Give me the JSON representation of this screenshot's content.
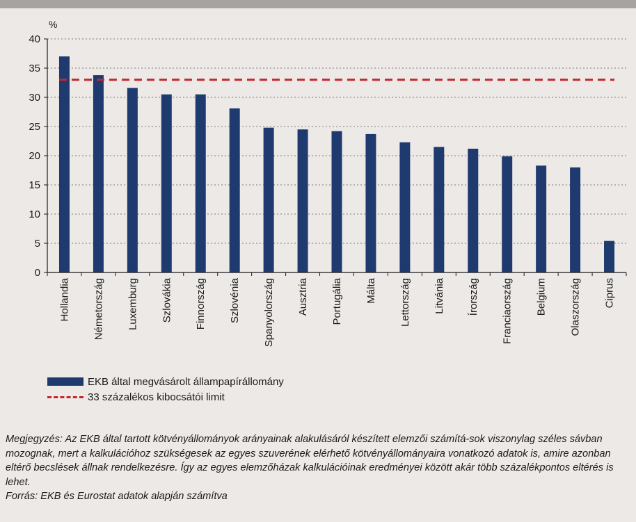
{
  "chart_data": {
    "type": "bar",
    "ylabel": "%",
    "ylim": [
      0,
      40
    ],
    "yticks": [
      0,
      5,
      10,
      15,
      20,
      25,
      30,
      35,
      40
    ],
    "grid": true,
    "categories": [
      "Hollandia",
      "Németország",
      "Luxemburg",
      "Szlovákia",
      "Finnország",
      "Szlovénia",
      "Spanyolország",
      "Ausztria",
      "Portugália",
      "Málta",
      "Lettország",
      "Litvánia",
      "Írország",
      "Franciaország",
      "Belgium",
      "Olaszország",
      "Ciprus"
    ],
    "series": [
      {
        "name": "EKB által megvásárolt állampapírállomány",
        "values": [
          37.0,
          33.8,
          31.6,
          30.5,
          30.5,
          28.1,
          24.8,
          24.5,
          24.2,
          23.7,
          22.3,
          21.5,
          21.2,
          19.9,
          18.3,
          18.0,
          5.4
        ],
        "color": "#1f3a6e"
      }
    ],
    "reference_line": {
      "name": "33 százalékos kibocsátói limit",
      "value": 33,
      "color": "#c1272d",
      "style": "dashed"
    },
    "legend_position": "bottom-left"
  },
  "legend": {
    "bar_label": "EKB által megvásárolt állampapírállomány",
    "line_label": "33 százalékos kibocsátói limit"
  },
  "notes": {
    "note": "Megjegyzés: Az EKB által tartott kötvényállományok arányainak alakulásáról készített elemzői számítá-sok viszonylag széles sávban mozognak, mert a kalkulációhoz szükségesek az egyes szuverének elérhető kötvényállományaira vonatkozó adatok is, amire azonban eltérő becslések állnak rendelkezésre. Így az egyes elemzőházak kalkulációinak eredményei között akár több százalékpontos eltérés is lehet.",
    "source": "Forrás: EKB és Eurostat adatok alapján számítva"
  }
}
